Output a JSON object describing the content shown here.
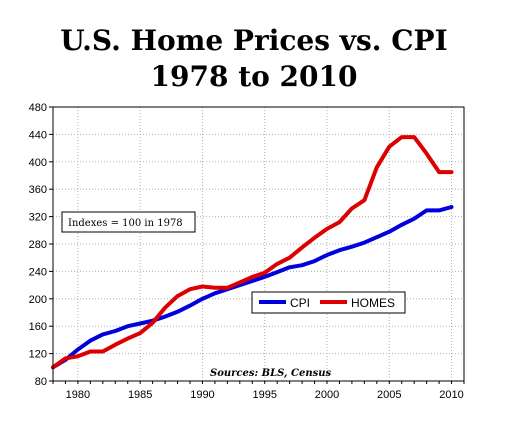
{
  "chart_data": {
    "type": "line",
    "title": "U.S. Home Prices vs. CPI",
    "subtitle": "1978 to 2010",
    "xlabel": "",
    "ylabel": "",
    "xlim": [
      1978,
      2011
    ],
    "ylim": [
      80,
      480
    ],
    "x_ticks": [
      1980,
      1985,
      1990,
      1995,
      2000,
      2005,
      2010
    ],
    "y_ticks": [
      80,
      120,
      160,
      200,
      240,
      280,
      320,
      360,
      400,
      440,
      480
    ],
    "annotation": "Indexes = 100 in 1978",
    "source": "Sources: BLS, Census",
    "legend_position": "center-right",
    "x": [
      1978,
      1979,
      1980,
      1981,
      1982,
      1983,
      1984,
      1985,
      1986,
      1987,
      1988,
      1989,
      1990,
      1991,
      1992,
      1993,
      1994,
      1995,
      1996,
      1997,
      1998,
      1999,
      2000,
      2001,
      2002,
      2003,
      2004,
      2005,
      2006,
      2007,
      2008,
      2009,
      2010
    ],
    "series": [
      {
        "name": "CPI",
        "color": "#0000dd",
        "values": [
          100,
          111,
          126,
          139,
          148,
          153,
          160,
          164,
          168,
          174,
          181,
          190,
          200,
          208,
          214,
          220,
          226,
          232,
          239,
          246,
          249,
          255,
          264,
          271,
          276,
          282,
          290,
          298,
          308,
          317,
          329,
          329,
          334
        ]
      },
      {
        "name": "HOMES",
        "color": "#dd0000",
        "values": [
          100,
          113,
          116,
          123,
          123,
          133,
          142,
          150,
          165,
          187,
          204,
          214,
          218,
          216,
          216,
          224,
          232,
          238,
          251,
          260,
          275,
          289,
          302,
          312,
          332,
          344,
          392,
          422,
          436,
          436,
          412,
          385,
          385
        ]
      }
    ]
  }
}
